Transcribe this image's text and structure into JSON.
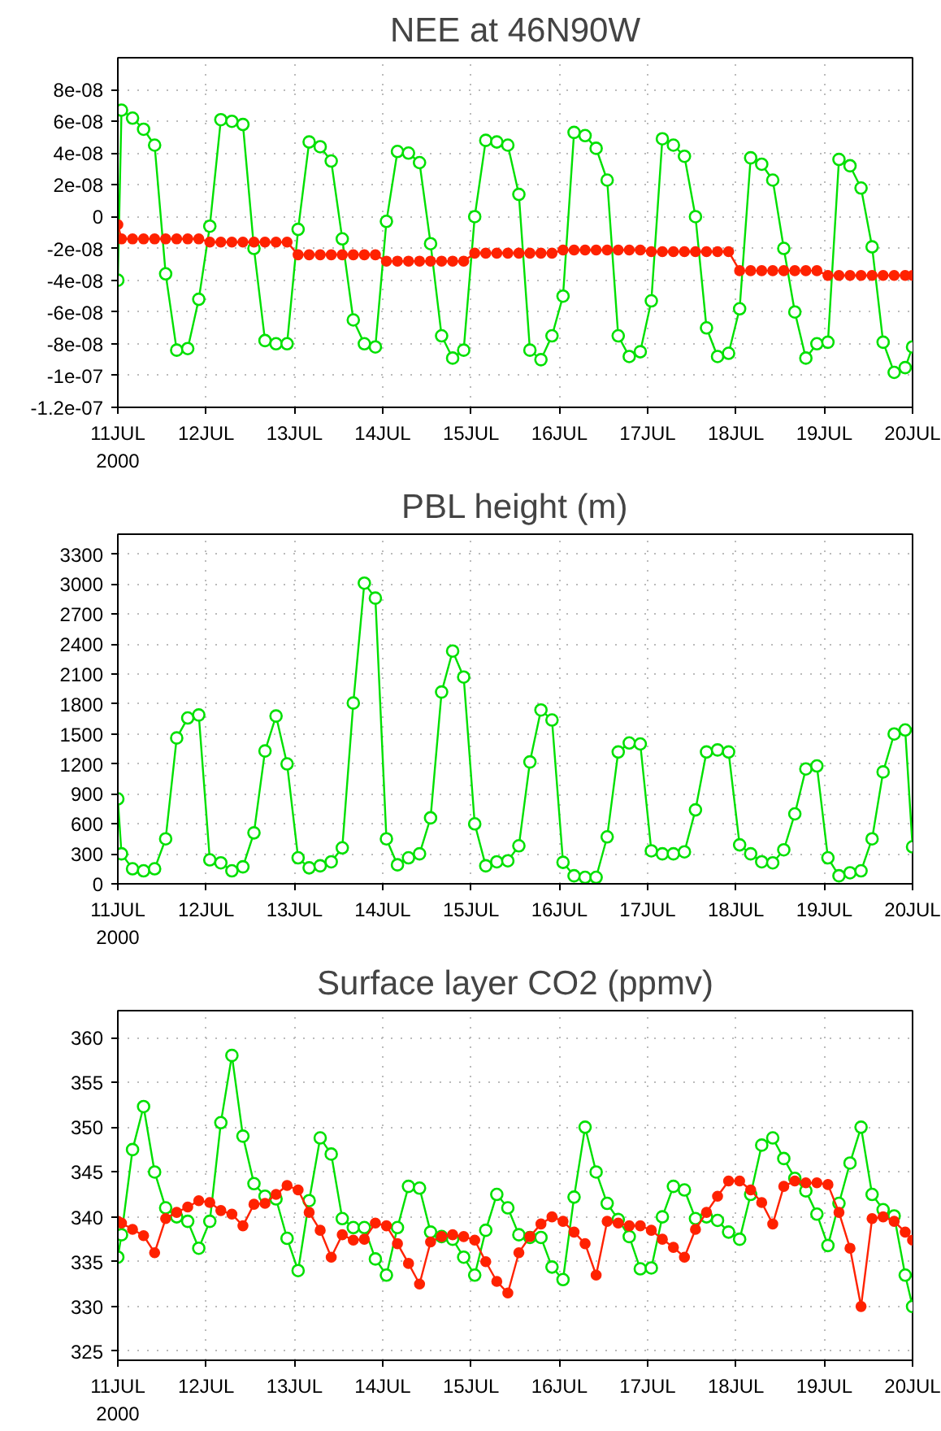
{
  "chart_data": [
    {
      "type": "line",
      "title": "NEE at 46N90W",
      "marker": "circle",
      "line_style": "solid",
      "grid": true,
      "x": [
        "2000-07-11T00:00",
        "2000-07-11T01:00",
        "2000-07-11T04:00",
        "2000-07-11T07:00",
        "2000-07-11T10:00",
        "2000-07-11T13:00",
        "2000-07-11T16:00",
        "2000-07-11T19:00",
        "2000-07-11T22:00",
        "2000-07-12T01:00",
        "2000-07-12T04:00",
        "2000-07-12T07:00",
        "2000-07-12T10:00",
        "2000-07-12T13:00",
        "2000-07-12T16:00",
        "2000-07-12T19:00",
        "2000-07-12T22:00",
        "2000-07-13T01:00",
        "2000-07-13T04:00",
        "2000-07-13T07:00",
        "2000-07-13T10:00",
        "2000-07-13T13:00",
        "2000-07-13T16:00",
        "2000-07-13T19:00",
        "2000-07-13T22:00",
        "2000-07-14T01:00",
        "2000-07-14T04:00",
        "2000-07-14T07:00",
        "2000-07-14T10:00",
        "2000-07-14T13:00",
        "2000-07-14T16:00",
        "2000-07-14T19:00",
        "2000-07-14T22:00",
        "2000-07-15T01:00",
        "2000-07-15T04:00",
        "2000-07-15T07:00",
        "2000-07-15T10:00",
        "2000-07-15T13:00",
        "2000-07-15T16:00",
        "2000-07-15T19:00",
        "2000-07-15T22:00",
        "2000-07-16T01:00",
        "2000-07-16T04:00",
        "2000-07-16T07:00",
        "2000-07-16T10:00",
        "2000-07-16T13:00",
        "2000-07-16T16:00",
        "2000-07-16T19:00",
        "2000-07-16T22:00",
        "2000-07-17T01:00",
        "2000-07-17T04:00",
        "2000-07-17T07:00",
        "2000-07-17T10:00",
        "2000-07-17T13:00",
        "2000-07-17T16:00",
        "2000-07-17T19:00",
        "2000-07-17T22:00",
        "2000-07-18T01:00",
        "2000-07-18T04:00",
        "2000-07-18T07:00",
        "2000-07-18T10:00",
        "2000-07-18T13:00",
        "2000-07-18T16:00",
        "2000-07-18T19:00",
        "2000-07-18T22:00",
        "2000-07-19T01:00",
        "2000-07-19T04:00",
        "2000-07-19T07:00",
        "2000-07-19T10:00",
        "2000-07-19T13:00",
        "2000-07-19T16:00",
        "2000-07-19T19:00",
        "2000-07-19T22:00",
        "2000-07-20T00:00"
      ],
      "xlim": [
        "2000-07-11T00:00",
        "2000-07-20T00:00"
      ],
      "xticks": [
        {
          "value": "2000-07-11",
          "label": "11JUL\n2000"
        },
        {
          "value": "2000-07-12",
          "label": "12JUL"
        },
        {
          "value": "2000-07-13",
          "label": "13JUL"
        },
        {
          "value": "2000-07-14",
          "label": "14JUL"
        },
        {
          "value": "2000-07-15",
          "label": "15JUL"
        },
        {
          "value": "2000-07-16",
          "label": "16JUL"
        },
        {
          "value": "2000-07-17",
          "label": "17JUL"
        },
        {
          "value": "2000-07-18",
          "label": "18JUL"
        },
        {
          "value": "2000-07-19",
          "label": "19JUL"
        },
        {
          "value": "2000-07-20",
          "label": "20JUL"
        }
      ],
      "ylim": [
        -1.2e-07,
        1e-07
      ],
      "yticks": [
        {
          "value": -1.2e-07,
          "label": "-1.2e-07"
        },
        {
          "value": -1e-07,
          "label": "-1e-07"
        },
        {
          "value": -8e-08,
          "label": "-8e-08"
        },
        {
          "value": -6e-08,
          "label": "-6e-08"
        },
        {
          "value": -4e-08,
          "label": "-4e-08"
        },
        {
          "value": -2e-08,
          "label": "-2e-08"
        },
        0,
        {
          "value": 2e-08,
          "label": "2e-08"
        },
        {
          "value": 4e-08,
          "label": "4e-08"
        },
        {
          "value": 6e-08,
          "label": "6e-08"
        },
        {
          "value": 8e-08,
          "label": "8e-08"
        }
      ],
      "series": [
        {
          "color": "#00e000",
          "values": [
            -4e-08,
            6.7e-08,
            6.2e-08,
            5.5e-08,
            4.5e-08,
            -3.6e-08,
            -8.4e-08,
            -8.3e-08,
            -5.2e-08,
            -6e-09,
            6.1e-08,
            6e-08,
            5.8e-08,
            -2e-08,
            -7.8e-08,
            -8e-08,
            -8e-08,
            -8e-09,
            4.7e-08,
            4.4e-08,
            3.5e-08,
            -1.4e-08,
            -6.5e-08,
            -8e-08,
            -8.2e-08,
            -3e-09,
            4.1e-08,
            4e-08,
            3.4e-08,
            -1.7e-08,
            -7.5e-08,
            -8.9e-08,
            -8.4e-08,
            0.0,
            4.8e-08,
            4.7e-08,
            4.5e-08,
            1.4e-08,
            -8.4e-08,
            -9e-08,
            -7.5e-08,
            -5e-08,
            5.3e-08,
            5.1e-08,
            4.3e-08,
            2.3e-08,
            -7.5e-08,
            -8.8e-08,
            -8.5e-08,
            -5.3e-08,
            4.9e-08,
            4.5e-08,
            3.8e-08,
            0.0,
            -7e-08,
            -8.8e-08,
            -8.6e-08,
            -5.8e-08,
            3.7e-08,
            3.3e-08,
            2.3e-08,
            -2e-08,
            -6e-08,
            -8.9e-08,
            -8e-08,
            -7.9e-08,
            3.6e-08,
            3.2e-08,
            1.8e-08,
            -1.9e-08,
            -7.9e-08,
            -9.8e-08,
            -9.5e-08,
            -8.2e-08
          ]
        },
        {
          "color": "#ff2200",
          "values": [
            -5e-09,
            -1.4e-08,
            -1.4e-08,
            -1.4e-08,
            -1.4e-08,
            -1.4e-08,
            -1.4e-08,
            -1.4e-08,
            -1.4e-08,
            -1.6e-08,
            -1.6e-08,
            -1.6e-08,
            -1.6e-08,
            -1.6e-08,
            -1.6e-08,
            -1.6e-08,
            -1.6e-08,
            -2.4e-08,
            -2.4e-08,
            -2.4e-08,
            -2.4e-08,
            -2.4e-08,
            -2.4e-08,
            -2.4e-08,
            -2.4e-08,
            -2.8e-08,
            -2.8e-08,
            -2.8e-08,
            -2.8e-08,
            -2.8e-08,
            -2.8e-08,
            -2.8e-08,
            -2.8e-08,
            -2.3e-08,
            -2.3e-08,
            -2.3e-08,
            -2.3e-08,
            -2.3e-08,
            -2.3e-08,
            -2.3e-08,
            -2.3e-08,
            -2.1e-08,
            -2.1e-08,
            -2.1e-08,
            -2.1e-08,
            -2.1e-08,
            -2.1e-08,
            -2.1e-08,
            -2.1e-08,
            -2.2e-08,
            -2.2e-08,
            -2.2e-08,
            -2.2e-08,
            -2.2e-08,
            -2.2e-08,
            -2.2e-08,
            -2.2e-08,
            -3.4e-08,
            -3.4e-08,
            -3.4e-08,
            -3.4e-08,
            -3.4e-08,
            -3.4e-08,
            -3.4e-08,
            -3.4e-08,
            -3.7e-08,
            -3.7e-08,
            -3.7e-08,
            -3.7e-08,
            -3.7e-08,
            -3.7e-08,
            -3.7e-08,
            -3.7e-08,
            -3.7e-08
          ]
        }
      ]
    },
    {
      "type": "line",
      "title": "PBL height (m)",
      "marker": "circle",
      "line_style": "solid",
      "grid": true,
      "x": [
        "2000-07-11T00:00",
        "2000-07-11T01:00",
        "2000-07-11T04:00",
        "2000-07-11T07:00",
        "2000-07-11T10:00",
        "2000-07-11T13:00",
        "2000-07-11T16:00",
        "2000-07-11T19:00",
        "2000-07-11T22:00",
        "2000-07-12T01:00",
        "2000-07-12T04:00",
        "2000-07-12T07:00",
        "2000-07-12T10:00",
        "2000-07-12T13:00",
        "2000-07-12T16:00",
        "2000-07-12T19:00",
        "2000-07-12T22:00",
        "2000-07-13T01:00",
        "2000-07-13T04:00",
        "2000-07-13T07:00",
        "2000-07-13T10:00",
        "2000-07-13T13:00",
        "2000-07-13T16:00",
        "2000-07-13T19:00",
        "2000-07-13T22:00",
        "2000-07-14T01:00",
        "2000-07-14T04:00",
        "2000-07-14T07:00",
        "2000-07-14T10:00",
        "2000-07-14T13:00",
        "2000-07-14T16:00",
        "2000-07-14T19:00",
        "2000-07-14T22:00",
        "2000-07-15T01:00",
        "2000-07-15T04:00",
        "2000-07-15T07:00",
        "2000-07-15T10:00",
        "2000-07-15T13:00",
        "2000-07-15T16:00",
        "2000-07-15T19:00",
        "2000-07-15T22:00",
        "2000-07-16T01:00",
        "2000-07-16T04:00",
        "2000-07-16T07:00",
        "2000-07-16T10:00",
        "2000-07-16T13:00",
        "2000-07-16T16:00",
        "2000-07-16T19:00",
        "2000-07-16T22:00",
        "2000-07-17T01:00",
        "2000-07-17T04:00",
        "2000-07-17T07:00",
        "2000-07-17T10:00",
        "2000-07-17T13:00",
        "2000-07-17T16:00",
        "2000-07-17T19:00",
        "2000-07-17T22:00",
        "2000-07-18T01:00",
        "2000-07-18T04:00",
        "2000-07-18T07:00",
        "2000-07-18T10:00",
        "2000-07-18T13:00",
        "2000-07-18T16:00",
        "2000-07-18T19:00",
        "2000-07-18T22:00",
        "2000-07-19T01:00",
        "2000-07-19T04:00",
        "2000-07-19T07:00",
        "2000-07-19T10:00",
        "2000-07-19T13:00",
        "2000-07-19T16:00",
        "2000-07-19T19:00",
        "2000-07-19T22:00",
        "2000-07-20T00:00"
      ],
      "xlim": [
        "2000-07-11T00:00",
        "2000-07-20T00:00"
      ],
      "xticks": [
        {
          "value": "2000-07-11",
          "label": "11JUL\n2000"
        },
        {
          "value": "2000-07-12",
          "label": "12JUL"
        },
        {
          "value": "2000-07-13",
          "label": "13JUL"
        },
        {
          "value": "2000-07-14",
          "label": "14JUL"
        },
        {
          "value": "2000-07-15",
          "label": "15JUL"
        },
        {
          "value": "2000-07-16",
          "label": "16JUL"
        },
        {
          "value": "2000-07-17",
          "label": "17JUL"
        },
        {
          "value": "2000-07-18",
          "label": "18JUL"
        },
        {
          "value": "2000-07-19",
          "label": "19JUL"
        },
        {
          "value": "2000-07-20",
          "label": "20JUL"
        }
      ],
      "ylim": [
        0,
        3500
      ],
      "yticks": [
        0,
        300,
        600,
        900,
        1200,
        1500,
        1800,
        2100,
        2400,
        2700,
        3000,
        3300
      ],
      "series": [
        {
          "color": "#00e000",
          "values": [
            850,
            300,
            150,
            130,
            150,
            450,
            1460,
            1660,
            1690,
            240,
            210,
            130,
            170,
            510,
            1330,
            1680,
            1200,
            260,
            160,
            180,
            220,
            360,
            1810,
            3010,
            2860,
            450,
            190,
            260,
            300,
            660,
            1920,
            2330,
            2070,
            600,
            180,
            220,
            230,
            380,
            1220,
            1740,
            1640,
            215,
            80,
            65,
            65,
            470,
            1320,
            1410,
            1400,
            330,
            300,
            300,
            320,
            740,
            1320,
            1340,
            1320,
            390,
            300,
            220,
            210,
            340,
            700,
            1150,
            1180,
            260,
            80,
            110,
            130,
            450,
            1120,
            1500,
            1540,
            370
          ]
        }
      ]
    },
    {
      "type": "line",
      "title": "Surface layer CO2 (ppmv)",
      "marker": "circle",
      "line_style": "solid",
      "grid": true,
      "x": [
        "2000-07-11T00:00",
        "2000-07-11T01:00",
        "2000-07-11T04:00",
        "2000-07-11T07:00",
        "2000-07-11T10:00",
        "2000-07-11T13:00",
        "2000-07-11T16:00",
        "2000-07-11T19:00",
        "2000-07-11T22:00",
        "2000-07-12T01:00",
        "2000-07-12T04:00",
        "2000-07-12T07:00",
        "2000-07-12T10:00",
        "2000-07-12T13:00",
        "2000-07-12T16:00",
        "2000-07-12T19:00",
        "2000-07-12T22:00",
        "2000-07-13T01:00",
        "2000-07-13T04:00",
        "2000-07-13T07:00",
        "2000-07-13T10:00",
        "2000-07-13T13:00",
        "2000-07-13T16:00",
        "2000-07-13T19:00",
        "2000-07-13T22:00",
        "2000-07-14T01:00",
        "2000-07-14T04:00",
        "2000-07-14T07:00",
        "2000-07-14T10:00",
        "2000-07-14T13:00",
        "2000-07-14T16:00",
        "2000-07-14T19:00",
        "2000-07-14T22:00",
        "2000-07-15T01:00",
        "2000-07-15T04:00",
        "2000-07-15T07:00",
        "2000-07-15T10:00",
        "2000-07-15T13:00",
        "2000-07-15T16:00",
        "2000-07-15T19:00",
        "2000-07-15T22:00",
        "2000-07-16T01:00",
        "2000-07-16T04:00",
        "2000-07-16T07:00",
        "2000-07-16T10:00",
        "2000-07-16T13:00",
        "2000-07-16T16:00",
        "2000-07-16T19:00",
        "2000-07-16T22:00",
        "2000-07-17T01:00",
        "2000-07-17T04:00",
        "2000-07-17T07:00",
        "2000-07-17T10:00",
        "2000-07-17T13:00",
        "2000-07-17T16:00",
        "2000-07-17T19:00",
        "2000-07-17T22:00",
        "2000-07-18T01:00",
        "2000-07-18T04:00",
        "2000-07-18T07:00",
        "2000-07-18T10:00",
        "2000-07-18T13:00",
        "2000-07-18T16:00",
        "2000-07-18T19:00",
        "2000-07-18T22:00",
        "2000-07-19T01:00",
        "2000-07-19T04:00",
        "2000-07-19T07:00",
        "2000-07-19T10:00",
        "2000-07-19T13:00",
        "2000-07-19T16:00",
        "2000-07-19T19:00",
        "2000-07-19T22:00",
        "2000-07-20T00:00"
      ],
      "xlim": [
        "2000-07-11T00:00",
        "2000-07-20T00:00"
      ],
      "xticks": [
        {
          "value": "2000-07-11",
          "label": "11JUL\n2000"
        },
        {
          "value": "2000-07-12",
          "label": "12JUL"
        },
        {
          "value": "2000-07-13",
          "label": "13JUL"
        },
        {
          "value": "2000-07-14",
          "label": "14JUL"
        },
        {
          "value": "2000-07-15",
          "label": "15JUL"
        },
        {
          "value": "2000-07-16",
          "label": "16JUL"
        },
        {
          "value": "2000-07-17",
          "label": "17JUL"
        },
        {
          "value": "2000-07-18",
          "label": "18JUL"
        },
        {
          "value": "2000-07-19",
          "label": "19JUL"
        },
        {
          "value": "2000-07-20",
          "label": "20JUL"
        }
      ],
      "ylim": [
        324,
        363
      ],
      "yticks": [
        325,
        330,
        335,
        340,
        345,
        350,
        355,
        360
      ],
      "series": [
        {
          "color": "#00e000",
          "values": [
            335.5,
            338,
            347.5,
            352.3,
            345,
            341,
            340,
            339.5,
            336.5,
            339.5,
            350.5,
            358,
            349,
            343.7,
            342.3,
            342,
            337.6,
            334,
            341.8,
            348.8,
            347,
            339.8,
            338.8,
            338.8,
            335.3,
            333.5,
            338.8,
            343.4,
            343.2,
            338.3,
            337.8,
            337.5,
            335.5,
            333.5,
            338.5,
            342.5,
            341,
            338,
            337.7,
            337.7,
            334.4,
            333,
            342.2,
            350,
            345,
            341.5,
            339.7,
            337.8,
            334.2,
            334.3,
            340,
            343.4,
            343,
            339.8,
            340,
            339.6,
            338.3,
            337.5,
            342.5,
            348,
            348.8,
            346.5,
            344.3,
            342.9,
            340.3,
            336.8,
            341.5,
            346,
            350,
            342.5,
            340.8,
            340.1,
            333.5,
            330
          ]
        },
        {
          "color": "#ff2200",
          "values": [
            339.5,
            339.3,
            338.6,
            337.9,
            336,
            339.8,
            340.5,
            341.1,
            341.8,
            341.6,
            340.7,
            340.3,
            339,
            341.4,
            341.5,
            342.5,
            343.5,
            343,
            340.5,
            338.5,
            335.5,
            338,
            337.4,
            337.5,
            339.3,
            339,
            337,
            334.8,
            332.5,
            337.2,
            337.8,
            338,
            337.8,
            337.4,
            335,
            332.8,
            331.5,
            336,
            337.8,
            339.2,
            340,
            339.5,
            338.3,
            337,
            333.5,
            339.5,
            339.3,
            339,
            339,
            338.5,
            337.5,
            336.6,
            335.5,
            338.6,
            340.5,
            342.3,
            344,
            344,
            343,
            341.6,
            339.2,
            343.4,
            344,
            343.8,
            343.8,
            343.6,
            340.5,
            336.5,
            330,
            339.8,
            340,
            339.5,
            338.3,
            337.4
          ]
        }
      ]
    }
  ]
}
